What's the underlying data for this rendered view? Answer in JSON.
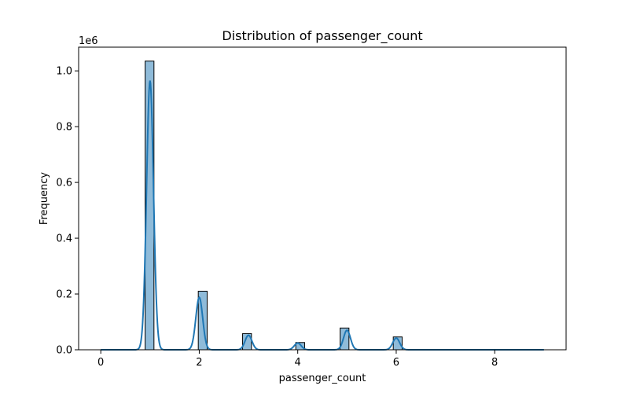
{
  "chart_data": {
    "type": "bar",
    "title": "Distribution of passenger_count",
    "xlabel": "passenger_count",
    "ylabel": "Frequency",
    "y_offset_label": "1e6",
    "xlim": [
      -0.45,
      9.45
    ],
    "ylim": [
      0,
      1085000
    ],
    "x_ticks": [
      0,
      2,
      4,
      6,
      8
    ],
    "x_tick_labels": [
      "0",
      "2",
      "4",
      "6",
      "8"
    ],
    "y_ticks": [
      0,
      200000,
      400000,
      600000,
      800000,
      1000000
    ],
    "y_tick_labels": [
      "0.0",
      "0.2",
      "0.4",
      "0.6",
      "0.8",
      "1.0"
    ],
    "grid": false,
    "legend": "none",
    "bar_color": "#1f77b4",
    "bar_fill_opacity": 0.5,
    "bar_edge_color": "#000000",
    "kde_color": "#1f77b4",
    "bins": [
      {
        "x0": 0.9,
        "x1": 1.08,
        "value": 1035000
      },
      {
        "x0": 1.98,
        "x1": 2.16,
        "value": 210000
      },
      {
        "x0": 2.88,
        "x1": 3.06,
        "value": 58000
      },
      {
        "x0": 3.96,
        "x1": 4.14,
        "value": 26000
      },
      {
        "x0": 4.86,
        "x1": 5.04,
        "value": 78000
      },
      {
        "x0": 5.94,
        "x1": 6.12,
        "value": 46000
      }
    ],
    "kde": {
      "x_range": [
        0,
        9
      ],
      "peaks": [
        {
          "center": 1.0,
          "height": 965000,
          "sigma": 0.07
        },
        {
          "center": 2.0,
          "height": 188000,
          "sigma": 0.07
        },
        {
          "center": 3.0,
          "height": 52000,
          "sigma": 0.07
        },
        {
          "center": 4.0,
          "height": 24000,
          "sigma": 0.07
        },
        {
          "center": 5.0,
          "height": 70000,
          "sigma": 0.07
        },
        {
          "center": 6.0,
          "height": 42000,
          "sigma": 0.07
        }
      ]
    }
  }
}
